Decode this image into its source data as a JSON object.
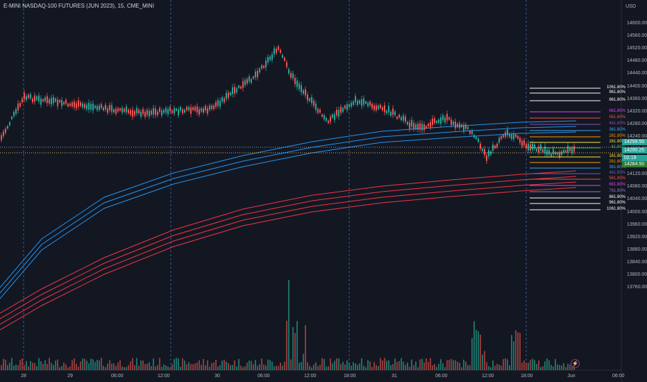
{
  "header": {
    "title": "E-MINI NASDAQ-100 FUTURES (JUN 2023), 15, CME_MINI"
  },
  "price_axis": {
    "currency": "USD",
    "ticks": [
      "14600.00",
      "14560.00",
      "14520.00",
      "14480.00",
      "14440.00",
      "14400.00",
      "14360.00",
      "14320.00",
      "14280.00",
      "14240.00",
      "14200.00",
      "14160.00",
      "14120.00",
      "14080.00",
      "14040.00",
      "14000.00",
      "13960.00",
      "13920.00",
      "13880.00",
      "13840.00",
      "13800.00",
      "13760.00"
    ]
  },
  "time_axis": {
    "ticks": [
      "28",
      "29",
      "06:00",
      "12:00",
      "30",
      "06:00",
      "12:00",
      "18:00",
      "31",
      "06:00",
      "12:00",
      "18:00",
      "Jun",
      "06:00"
    ]
  },
  "price_tags": [
    {
      "text": "14299.50",
      "color": "#26a69a"
    },
    {
      "text": "14290.25",
      "color": "#26a69a"
    },
    {
      "text": "02:19",
      "color": "#26a69a"
    },
    {
      "text": "14284.50",
      "color": "#2e7d32"
    }
  ],
  "fib_levels": [
    {
      "label": "1061.80%",
      "color": "#ffffff"
    },
    {
      "label": "961.80%",
      "color": "#ffffff"
    },
    {
      "label": "861.80%",
      "color": "#ffffff"
    },
    {
      "label": "661.80%",
      "color": "#e040fb"
    },
    {
      "label": "561.80%",
      "color": "#ef5350"
    },
    {
      "label": "461.80%",
      "color": "#7e57c2"
    },
    {
      "label": "361.80%",
      "color": "#42a5f5"
    },
    {
      "label": "261.80%",
      "color": "#ff9800"
    },
    {
      "label": "161.80%",
      "color": "#ffeb3b"
    },
    {
      "label": "61.80%",
      "color": "#4caf50"
    },
    {
      "label": "161.80%",
      "color": "#ffeb3b"
    },
    {
      "label": "261.80%",
      "color": "#ff9800"
    },
    {
      "label": "361.80%",
      "color": "#42a5f5"
    },
    {
      "label": "461.80%",
      "color": "#7e57c2"
    },
    {
      "label": "561.80%",
      "color": "#ef5350"
    },
    {
      "label": "661.80%",
      "color": "#e040fb"
    },
    {
      "label": "761.80%",
      "color": "#9575cd"
    },
    {
      "label": "861.80%",
      "color": "#ffffff"
    },
    {
      "label": "961.80%",
      "color": "#ffffff"
    },
    {
      "label": "1061.80%",
      "color": "#ffffff"
    }
  ],
  "colors": {
    "background": "#131722",
    "up": "#26a69a",
    "down": "#ef5350",
    "ema_blue": "#2196f3",
    "ema_red": "#f23645"
  },
  "alert_icon": "lightning-icon"
}
